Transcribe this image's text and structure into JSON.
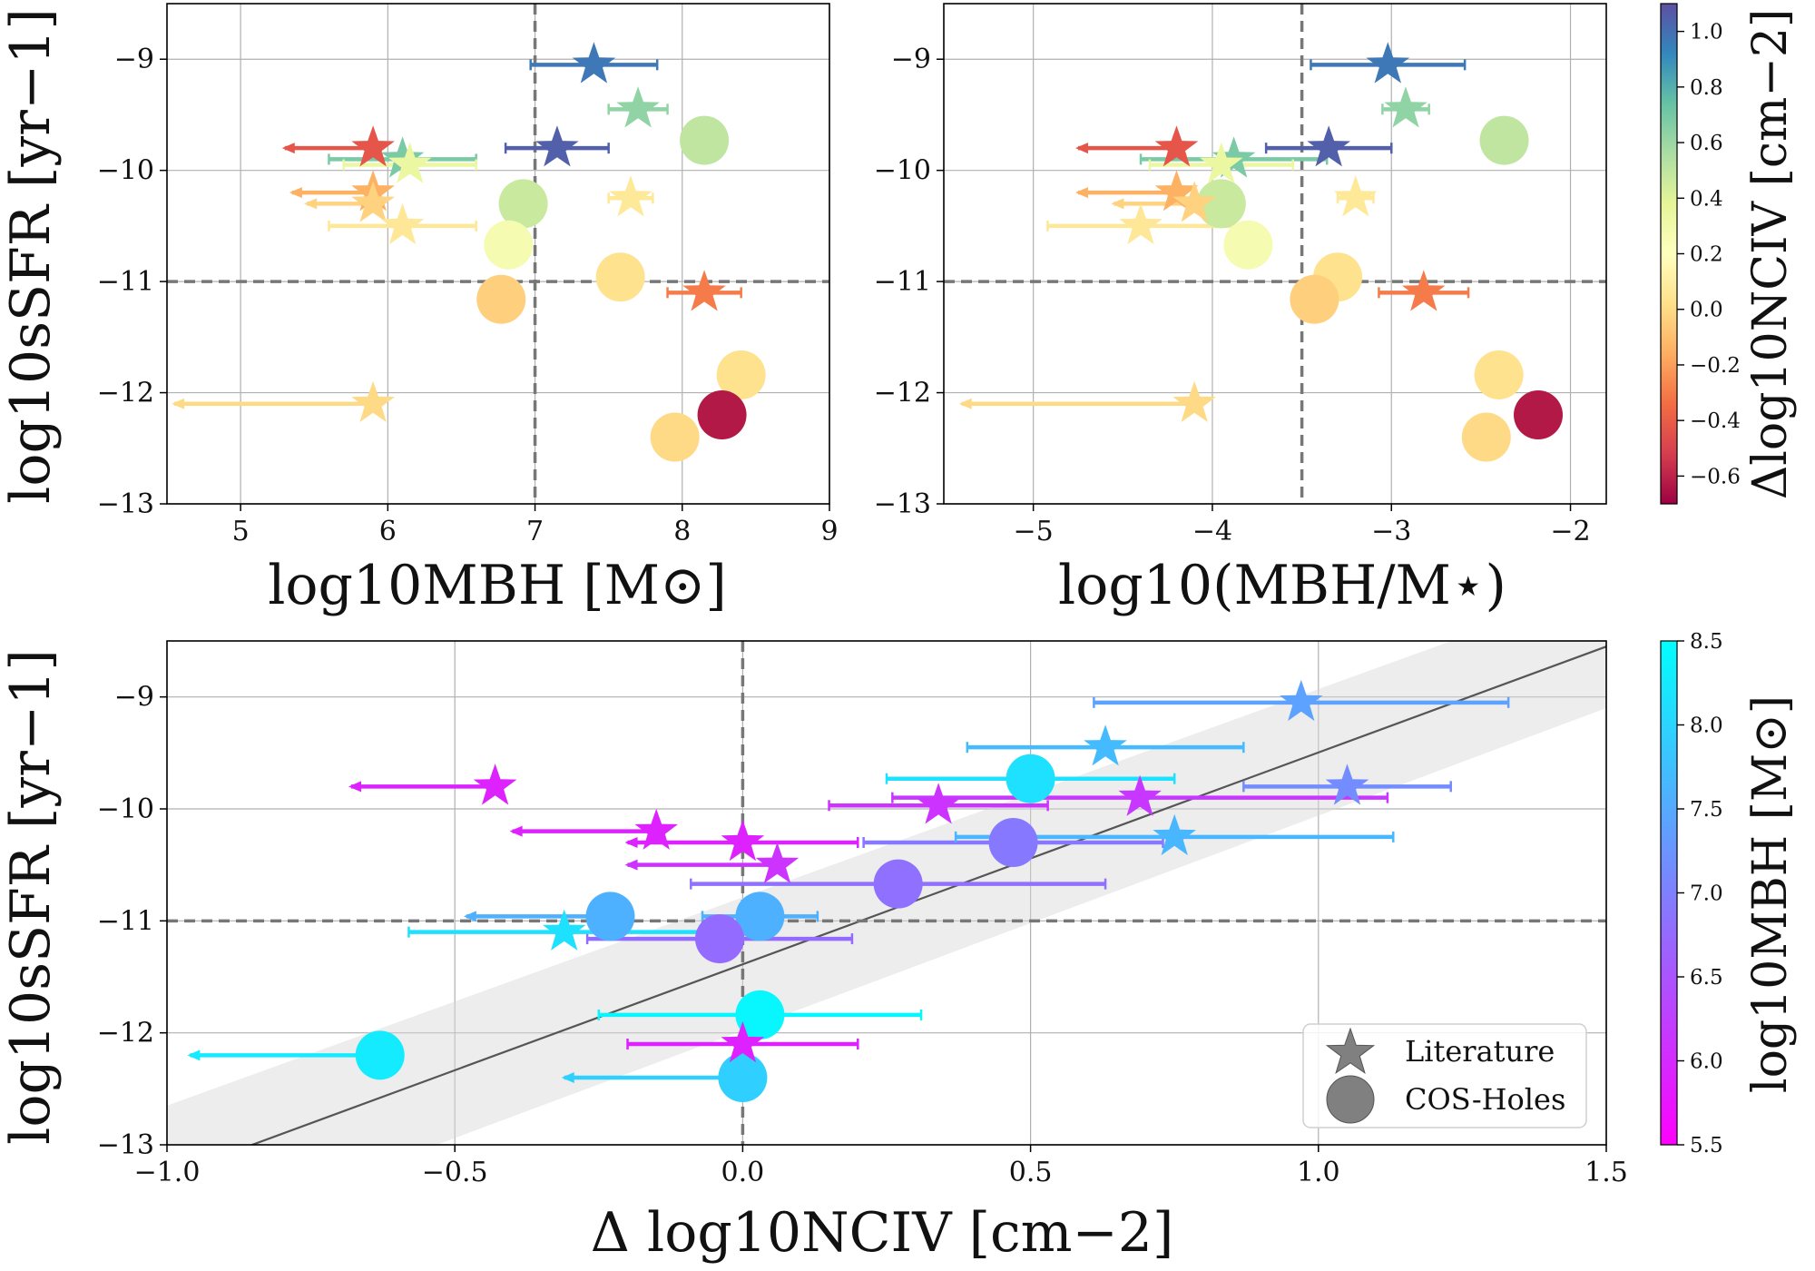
{
  "chart_data": [
    {
      "type": "scatter",
      "panel": "top-left",
      "xlabel": "log10MBH [M⊙]",
      "ylabel": "log10sSFR [yr−1]",
      "xlim": [
        4.5,
        9
      ],
      "ylim": [
        -13,
        -8.5
      ],
      "xticks": [
        5,
        6,
        7,
        8,
        9
      ],
      "yticks": [
        -13,
        -12,
        -11,
        -10,
        -9
      ],
      "ref_vline": 7,
      "ref_hline": -11,
      "grid": true,
      "color_by": "dN",
      "stars": [
        {
          "x": 7.4,
          "y": -9.05,
          "dN": 0.97,
          "xerr": [
            0.43,
            0.43
          ]
        },
        {
          "x": 7.7,
          "y": -9.45,
          "dN": 0.63,
          "xerr": [
            0.2,
            0.2
          ]
        },
        {
          "x": 5.9,
          "y": -9.8,
          "dN": -0.43,
          "upper_limit": true,
          "xerr": [
            0.6,
            0
          ]
        },
        {
          "x": 7.15,
          "y": -9.8,
          "dN": 1.05,
          "xerr": [
            0.35,
            0.35
          ]
        },
        {
          "x": 6.1,
          "y": -9.9,
          "dN": 0.69,
          "xerr": [
            0.5,
            0.5
          ]
        },
        {
          "x": 6.15,
          "y": -9.95,
          "dN": 0.34,
          "xerr": [
            0.45,
            0.45
          ]
        },
        {
          "x": 5.9,
          "y": -10.2,
          "dN": -0.15,
          "upper_limit": true,
          "xerr": [
            0.55,
            0
          ]
        },
        {
          "x": 7.65,
          "y": -10.25,
          "dN": 0.07,
          "xerr": [
            0.15,
            0.15
          ]
        },
        {
          "x": 5.9,
          "y": -10.3,
          "dN": -0.03,
          "upper_limit": true,
          "xerr": [
            0.45,
            0
          ]
        },
        {
          "x": 6.1,
          "y": -10.5,
          "dN": 0.06,
          "xerr": [
            0.5,
            0.5
          ]
        },
        {
          "x": 8.15,
          "y": -11.1,
          "dN": -0.3,
          "xerr": [
            0.25,
            0.25
          ]
        },
        {
          "x": 5.9,
          "y": -12.1,
          "dN": 0.0,
          "upper_limit": true,
          "xerr": [
            1.35,
            0
          ]
        }
      ],
      "circles": [
        {
          "x": 8.15,
          "y": -9.73,
          "dN": 0.5
        },
        {
          "x": 6.92,
          "y": -10.3,
          "dN": 0.47
        },
        {
          "x": 6.82,
          "y": -10.67,
          "dN": 0.27
        },
        {
          "x": 7.58,
          "y": -10.96,
          "dN": 0.03
        },
        {
          "x": 6.77,
          "y": -11.16,
          "dN": -0.04
        },
        {
          "x": 8.4,
          "y": -11.84,
          "dN": 0.03
        },
        {
          "x": 8.27,
          "y": -12.2,
          "dN": -0.63
        },
        {
          "x": 7.95,
          "y": -12.4,
          "dN": 0.0
        }
      ]
    },
    {
      "type": "scatter",
      "panel": "top-right",
      "xlabel": "log10(MBH/M⋆)",
      "ylabel": "",
      "xlim": [
        -5.5,
        -1.8
      ],
      "ylim": [
        -13,
        -8.5
      ],
      "xticks": [
        -5,
        -4,
        -3,
        -2
      ],
      "xtick_labels": [
        "−5",
        "−4",
        "−3",
        "−2"
      ],
      "yticks": [
        -13,
        -12,
        -11,
        -10,
        -9
      ],
      "ref_vline": -3.5,
      "ref_hline": -11,
      "grid": true,
      "color_by": "dN",
      "stars": [
        {
          "x": -3.02,
          "y": -9.05,
          "dN": 0.97,
          "xerr": [
            0.43,
            0.43
          ]
        },
        {
          "x": -2.92,
          "y": -9.45,
          "dN": 0.63,
          "xerr": [
            0.13,
            0.13
          ]
        },
        {
          "x": -4.2,
          "y": -9.8,
          "dN": -0.43,
          "upper_limit": true,
          "xerr": [
            0.55,
            0
          ]
        },
        {
          "x": -3.35,
          "y": -9.8,
          "dN": 1.05,
          "xerr": [
            0.35,
            0.35
          ]
        },
        {
          "x": -3.88,
          "y": -9.9,
          "dN": 0.69,
          "xerr": [
            0.52,
            0.52
          ]
        },
        {
          "x": -3.95,
          "y": -9.95,
          "dN": 0.34,
          "xerr": [
            0.4,
            0.4
          ]
        },
        {
          "x": -4.2,
          "y": -10.2,
          "dN": -0.15,
          "upper_limit": true,
          "xerr": [
            0.55,
            0
          ]
        },
        {
          "x": -3.2,
          "y": -10.25,
          "dN": 0.07,
          "xerr": [
            0.1,
            0.1
          ]
        },
        {
          "x": -4.1,
          "y": -10.3,
          "dN": -0.03,
          "upper_limit": true,
          "xerr": [
            0.45,
            0
          ]
        },
        {
          "x": -4.4,
          "y": -10.5,
          "dN": 0.06,
          "xerr": [
            0.52,
            0.52
          ]
        },
        {
          "x": -2.82,
          "y": -11.1,
          "dN": -0.3,
          "xerr": [
            0.25,
            0.25
          ]
        },
        {
          "x": -4.1,
          "y": -12.1,
          "dN": 0.0,
          "upper_limit": true,
          "xerr": [
            1.3,
            0
          ]
        }
      ],
      "circles": [
        {
          "x": -2.37,
          "y": -9.73,
          "dN": 0.5
        },
        {
          "x": -3.95,
          "y": -10.3,
          "dN": 0.47
        },
        {
          "x": -3.8,
          "y": -10.67,
          "dN": 0.27
        },
        {
          "x": -3.3,
          "y": -10.96,
          "dN": 0.03
        },
        {
          "x": -3.43,
          "y": -11.16,
          "dN": -0.04
        },
        {
          "x": -2.4,
          "y": -11.84,
          "dN": 0.03
        },
        {
          "x": -2.18,
          "y": -12.2,
          "dN": -0.63
        },
        {
          "x": -2.47,
          "y": -12.4,
          "dN": 0.0
        }
      ]
    },
    {
      "type": "scatter",
      "panel": "bottom",
      "xlabel": "Δ log10NCIV [cm−2]",
      "ylabel": "log10sSFR [yr−1]",
      "xlim": [
        -1.0,
        1.5
      ],
      "ylim": [
        -13,
        -8.5
      ],
      "xticks": [
        -1.0,
        -0.5,
        0.0,
        0.5,
        1.0,
        1.5
      ],
      "xtick_labels": [
        "−1.0",
        "−0.5",
        "0.0",
        "0.5",
        "1.0",
        "1.5"
      ],
      "yticks": [
        -13,
        -12,
        -11,
        -10,
        -9
      ],
      "ref_vline": 0,
      "ref_hline": -11,
      "grid": true,
      "color_by": "mbh",
      "fit_line": {
        "x": [
          -1.0,
          1.5
        ],
        "y": [
          -13.28,
          -8.55
        ]
      },
      "fit_band": {
        "x": [
          -1.0,
          1.5
        ],
        "y_low": [
          -13.9,
          -9.1
        ],
        "y_high": [
          -12.65,
          -8.0
        ]
      },
      "stars": [
        {
          "x": 0.97,
          "y": -9.05,
          "mbh": 7.4,
          "xerr": [
            0.36,
            0.36
          ]
        },
        {
          "x": 0.63,
          "y": -9.45,
          "mbh": 7.7,
          "xerr": [
            0.24,
            0.24
          ]
        },
        {
          "x": -0.43,
          "y": -9.8,
          "mbh": 5.9,
          "upper_limit": true,
          "xerr": [
            0.25,
            0
          ]
        },
        {
          "x": 1.05,
          "y": -9.8,
          "mbh": 7.15,
          "xerr": [
            0.18,
            0.18
          ]
        },
        {
          "x": 0.34,
          "y": -9.97,
          "mbh": 6.1,
          "xerr": [
            0.19,
            0.19
          ]
        },
        {
          "x": 0.69,
          "y": -9.9,
          "mbh": 6.15,
          "xerr": [
            0.43,
            0.43
          ]
        },
        {
          "x": -0.15,
          "y": -10.2,
          "mbh": 5.9,
          "upper_limit": true,
          "xerr": [
            0.25,
            0
          ]
        },
        {
          "x": 0.0,
          "y": -10.3,
          "mbh": 5.9,
          "upper_limit": true,
          "xerr": [
            0.2,
            0.2
          ]
        },
        {
          "x": 0.75,
          "y": -10.25,
          "mbh": 7.65,
          "xerr": [
            0.38,
            0.38
          ]
        },
        {
          "x": 0.06,
          "y": -10.5,
          "mbh": 6.1,
          "upper_limit": true,
          "xerr": [
            0.26,
            0
          ]
        },
        {
          "x": -0.31,
          "y": -11.1,
          "mbh": 8.15,
          "xerr": [
            0.27,
            0.27
          ]
        },
        {
          "x": 0.0,
          "y": -12.1,
          "mbh": 5.9,
          "xerr": [
            0.2,
            0.2
          ]
        }
      ],
      "circles": [
        {
          "x": 0.5,
          "y": -9.73,
          "mbh": 8.15,
          "xerr": [
            0.25,
            0.25
          ]
        },
        {
          "x": 0.47,
          "y": -10.3,
          "mbh": 6.92,
          "xerr": [
            0.26,
            0.26
          ]
        },
        {
          "x": 0.27,
          "y": -10.67,
          "mbh": 6.82,
          "xerr": [
            0.36,
            0.36
          ]
        },
        {
          "x": -0.23,
          "y": -10.96,
          "mbh": 7.58,
          "upper_limit": true,
          "xerr": [
            0.25,
            0
          ]
        },
        {
          "x": 0.03,
          "y": -10.96,
          "mbh": 7.58,
          "xerr": [
            0.1,
            0.1
          ]
        },
        {
          "x": -0.04,
          "y": -11.16,
          "mbh": 6.77,
          "xerr": [
            0.23,
            0.23
          ]
        },
        {
          "x": 0.03,
          "y": -11.84,
          "mbh": 8.4,
          "xerr": [
            0.28,
            0.28
          ]
        },
        {
          "x": -0.63,
          "y": -12.2,
          "mbh": 8.27,
          "upper_limit": true,
          "xerr": [
            0.33,
            0
          ]
        },
        {
          "x": 0.0,
          "y": -12.4,
          "mbh": 7.95,
          "upper_limit": true,
          "xerr": [
            0.31,
            0
          ]
        }
      ]
    }
  ],
  "colorbars": [
    {
      "label": "Δlog10NCIV [cm−2]",
      "range": [
        -0.7,
        1.1
      ],
      "ticks": [
        1.0,
        0.8,
        0.6,
        0.4,
        0.2,
        0.0,
        -0.2,
        -0.4,
        -0.6
      ],
      "tick_labels": [
        "1.0",
        "0.8",
        "0.6",
        "0.4",
        "0.2",
        "0.0",
        "−0.2",
        "−0.4",
        "−0.6"
      ],
      "colormap": "Spectral"
    },
    {
      "label": "log10MBH [M⊙]",
      "range": [
        5.5,
        8.5
      ],
      "ticks": [
        8.5,
        8.0,
        7.5,
        7.0,
        6.5,
        6.0,
        5.5
      ],
      "tick_labels": [
        "8.5",
        "8.0",
        "7.5",
        "7.0",
        "6.5",
        "6.0",
        "5.5"
      ],
      "colormap": "cool"
    }
  ],
  "legend": {
    "placement": "bottom-right",
    "items": [
      {
        "label": "Literature",
        "marker": "star"
      },
      {
        "label": "COS-Holes",
        "marker": "circle"
      }
    ]
  }
}
